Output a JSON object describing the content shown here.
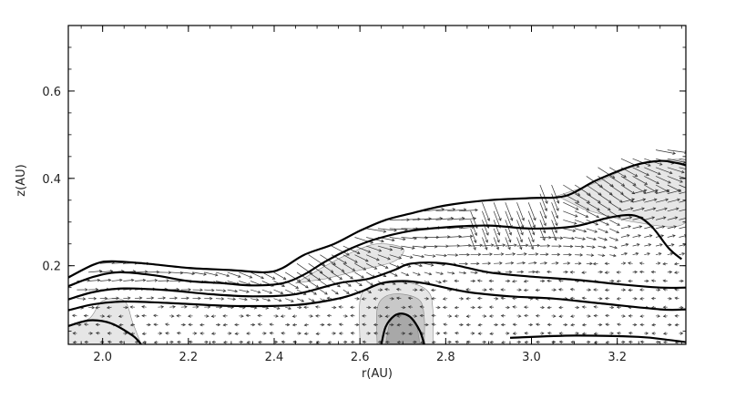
{
  "chart_data": {
    "type": "contour",
    "title": "",
    "xlabel": "r(AU)",
    "ylabel": "z(AU)",
    "xlim": [
      1.92,
      3.36
    ],
    "ylim": [
      0.02,
      0.75
    ],
    "xticks": [
      "2.0",
      "2.2",
      "2.4",
      "2.6",
      "2.8",
      "3.0",
      "3.2"
    ],
    "xtick_values": [
      2.0,
      2.2,
      2.4,
      2.6,
      2.8,
      3.0,
      3.2
    ],
    "yticks": [
      "0.2",
      "0.4",
      "0.6"
    ],
    "ytick_values": [
      0.2,
      0.4,
      0.6
    ],
    "contours": [
      {
        "name": "level-1",
        "points": [
          [
            1.92,
            0.173
          ],
          [
            1.98,
            0.203
          ],
          [
            2.02,
            0.21
          ],
          [
            2.1,
            0.205
          ],
          [
            2.2,
            0.195
          ],
          [
            2.3,
            0.19
          ],
          [
            2.38,
            0.185
          ],
          [
            2.42,
            0.195
          ],
          [
            2.47,
            0.225
          ],
          [
            2.54,
            0.25
          ],
          [
            2.6,
            0.28
          ],
          [
            2.66,
            0.305
          ],
          [
            2.72,
            0.32
          ],
          [
            2.8,
            0.338
          ],
          [
            2.9,
            0.35
          ],
          [
            3.0,
            0.355
          ],
          [
            3.08,
            0.36
          ],
          [
            3.15,
            0.395
          ],
          [
            3.24,
            0.43
          ],
          [
            3.3,
            0.44
          ],
          [
            3.34,
            0.435
          ],
          [
            3.36,
            0.43
          ]
        ]
      },
      {
        "name": "level-2",
        "points": [
          [
            1.92,
            0.153
          ],
          [
            1.98,
            0.175
          ],
          [
            2.04,
            0.185
          ],
          [
            2.12,
            0.178
          ],
          [
            2.2,
            0.165
          ],
          [
            2.28,
            0.16
          ],
          [
            2.35,
            0.155
          ],
          [
            2.42,
            0.16
          ],
          [
            2.47,
            0.18
          ],
          [
            2.52,
            0.21
          ],
          [
            2.58,
            0.24
          ],
          [
            2.64,
            0.262
          ],
          [
            2.72,
            0.28
          ],
          [
            2.8,
            0.288
          ],
          [
            2.9,
            0.292
          ],
          [
            3.0,
            0.285
          ],
          [
            3.1,
            0.29
          ],
          [
            3.18,
            0.31
          ],
          [
            3.24,
            0.315
          ],
          [
            3.28,
            0.29
          ],
          [
            3.32,
            0.24
          ],
          [
            3.35,
            0.215
          ]
        ]
      },
      {
        "name": "level-3",
        "points": [
          [
            1.92,
            0.123
          ],
          [
            1.98,
            0.14
          ],
          [
            2.05,
            0.148
          ],
          [
            2.15,
            0.144
          ],
          [
            2.25,
            0.135
          ],
          [
            2.35,
            0.13
          ],
          [
            2.45,
            0.135
          ],
          [
            2.55,
            0.16
          ],
          [
            2.62,
            0.17
          ],
          [
            2.68,
            0.19
          ],
          [
            2.72,
            0.205
          ],
          [
            2.8,
            0.205
          ],
          [
            2.9,
            0.185
          ],
          [
            3.0,
            0.175
          ],
          [
            3.1,
            0.168
          ],
          [
            3.2,
            0.158
          ],
          [
            3.3,
            0.15
          ],
          [
            3.36,
            0.15
          ]
        ]
      },
      {
        "name": "level-4",
        "points": [
          [
            1.92,
            0.098
          ],
          [
            1.98,
            0.112
          ],
          [
            2.05,
            0.118
          ],
          [
            2.15,
            0.115
          ],
          [
            2.3,
            0.108
          ],
          [
            2.45,
            0.11
          ],
          [
            2.55,
            0.125
          ],
          [
            2.6,
            0.14
          ],
          [
            2.65,
            0.16
          ],
          [
            2.7,
            0.165
          ],
          [
            2.75,
            0.16
          ],
          [
            2.85,
            0.14
          ],
          [
            2.95,
            0.13
          ],
          [
            3.05,
            0.125
          ],
          [
            3.15,
            0.115
          ],
          [
            3.3,
            0.1
          ],
          [
            3.36,
            0.1
          ]
        ]
      },
      {
        "name": "level-5",
        "points": [
          [
            1.92,
            0.062
          ],
          [
            1.97,
            0.075
          ],
          [
            2.02,
            0.068
          ],
          [
            2.07,
            0.04
          ],
          [
            2.09,
            0.02
          ]
        ]
      },
      {
        "name": "level-6",
        "points": [
          [
            2.65,
            0.02
          ],
          [
            2.66,
            0.06
          ],
          [
            2.68,
            0.085
          ],
          [
            2.7,
            0.09
          ],
          [
            2.72,
            0.08
          ],
          [
            2.74,
            0.05
          ],
          [
            2.75,
            0.02
          ]
        ]
      },
      {
        "name": "level-7",
        "points": [
          [
            2.95,
            0.035
          ],
          [
            3.1,
            0.04
          ],
          [
            3.25,
            0.037
          ],
          [
            3.32,
            0.03
          ],
          [
            3.36,
            0.025
          ]
        ]
      }
    ],
    "shaded_regions": [
      {
        "name": "shade-left",
        "shade": "light",
        "points": [
          [
            1.92,
            0.02
          ],
          [
            1.92,
            0.06
          ],
          [
            1.97,
            0.08
          ],
          [
            2.0,
            0.12
          ],
          [
            2.05,
            0.12
          ],
          [
            2.07,
            0.07
          ],
          [
            2.09,
            0.02
          ]
        ]
      },
      {
        "name": "shade-center-column",
        "shade": "light",
        "points": [
          [
            2.6,
            0.02
          ],
          [
            2.6,
            0.12
          ],
          [
            2.62,
            0.15
          ],
          [
            2.66,
            0.16
          ],
          [
            2.72,
            0.16
          ],
          [
            2.76,
            0.14
          ],
          [
            2.77,
            0.1
          ],
          [
            2.77,
            0.02
          ]
        ]
      },
      {
        "name": "shade-center-inner",
        "shade": "mid",
        "points": [
          [
            2.64,
            0.02
          ],
          [
            2.64,
            0.1
          ],
          [
            2.66,
            0.13
          ],
          [
            2.7,
            0.135
          ],
          [
            2.74,
            0.12
          ],
          [
            2.75,
            0.08
          ],
          [
            2.75,
            0.02
          ]
        ]
      },
      {
        "name": "shade-center-core",
        "shade": "dark",
        "points": [
          [
            2.66,
            0.02
          ],
          [
            2.67,
            0.07
          ],
          [
            2.69,
            0.09
          ],
          [
            2.71,
            0.088
          ],
          [
            2.73,
            0.07
          ],
          [
            2.74,
            0.02
          ]
        ]
      },
      {
        "name": "shade-mid-band",
        "shade": "light",
        "points": [
          [
            2.45,
            0.16
          ],
          [
            2.52,
            0.2
          ],
          [
            2.58,
            0.23
          ],
          [
            2.64,
            0.25
          ],
          [
            2.7,
            0.24
          ],
          [
            2.68,
            0.21
          ],
          [
            2.6,
            0.19
          ],
          [
            2.52,
            0.17
          ]
        ]
      },
      {
        "name": "shade-upper-right",
        "shade": "light",
        "points": [
          [
            3.06,
            0.36
          ],
          [
            3.15,
            0.39
          ],
          [
            3.24,
            0.43
          ],
          [
            3.3,
            0.44
          ],
          [
            3.36,
            0.43
          ],
          [
            3.36,
            0.3
          ],
          [
            3.24,
            0.3
          ],
          [
            3.12,
            0.33
          ]
        ]
      }
    ],
    "vector_field": {
      "r_start": 1.94,
      "r_end": 3.36,
      "r_step": 0.027,
      "z_start": 0.025,
      "z_step": 0.02,
      "description": "velocity arrows"
    },
    "colors": {
      "contour": "#000000",
      "light": "#e6e6e6",
      "mid": "#c8c8c8",
      "dark": "#a8a8a8",
      "arrow": "#333333"
    }
  }
}
